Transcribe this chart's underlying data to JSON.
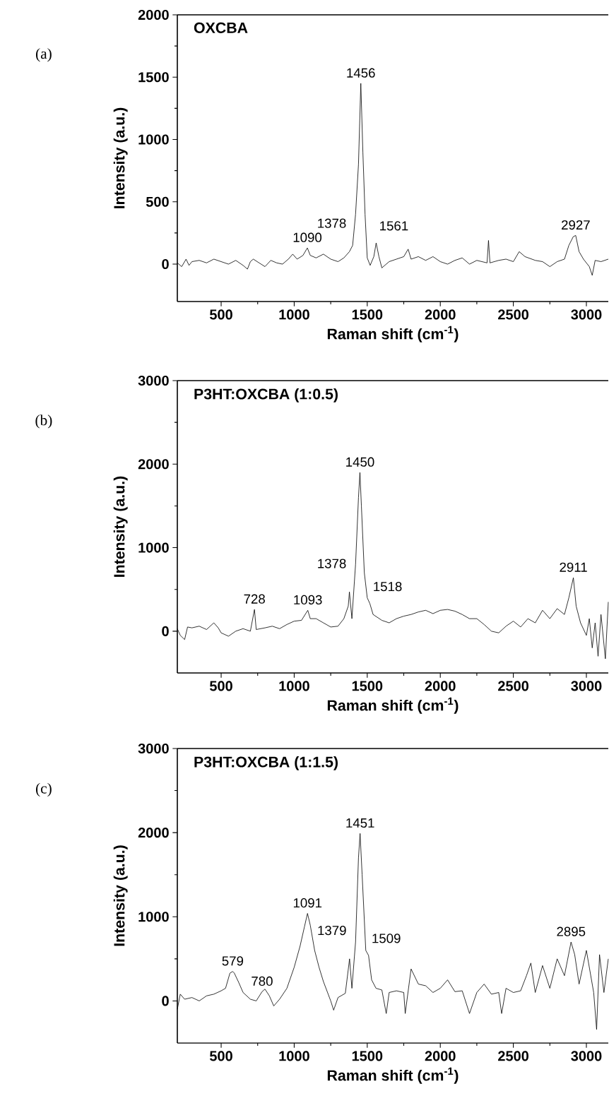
{
  "chart_data": [
    {
      "type": "line",
      "title": "OXCBA",
      "xlabel": "Raman shift (cm$^{-1}$)",
      "ylabel": "Intensity (a.u.)",
      "xlim": [
        200,
        3150
      ],
      "xticks": [
        500,
        1000,
        1500,
        2000,
        2500,
        3000
      ],
      "ylim": [
        -300,
        2000
      ],
      "yticks": [
        0,
        500,
        1000,
        1500,
        2000
      ],
      "series": [
        {
          "color": "#000000",
          "x": [
            200,
            230,
            260,
            280,
            300,
            350,
            400,
            450,
            500,
            550,
            600,
            650,
            680,
            700,
            720,
            760,
            800,
            840,
            880,
            920,
            960,
            990,
            1020,
            1060,
            1090,
            1110,
            1150,
            1200,
            1250,
            1300,
            1340,
            1378,
            1400,
            1420,
            1440,
            1456,
            1470,
            1485,
            1500,
            1520,
            1545,
            1561,
            1580,
            1600,
            1650,
            1700,
            1750,
            1780,
            1800,
            1850,
            1900,
            1950,
            2000,
            2050,
            2100,
            2150,
            2200,
            2250,
            2320,
            2330,
            2340,
            2400,
            2450,
            2500,
            2540,
            2580,
            2650,
            2700,
            2750,
            2800,
            2850,
            2880,
            2910,
            2927,
            2950,
            2980,
            3020,
            3040,
            3060,
            3100,
            3150
          ],
          "values": [
            10,
            -20,
            40,
            -10,
            20,
            30,
            10,
            40,
            20,
            0,
            30,
            -10,
            -40,
            20,
            40,
            10,
            -20,
            30,
            10,
            0,
            40,
            80,
            40,
            70,
            130,
            70,
            50,
            80,
            40,
            20,
            50,
            100,
            150,
            400,
            800,
            1450,
            900,
            400,
            50,
            -10,
            60,
            170,
            60,
            -30,
            20,
            40,
            60,
            120,
            40,
            60,
            30,
            60,
            20,
            0,
            30,
            50,
            0,
            30,
            10,
            190,
            10,
            30,
            40,
            20,
            100,
            60,
            30,
            20,
            -20,
            20,
            40,
            150,
            220,
            230,
            100,
            40,
            -20,
            -90,
            30,
            20,
            40
          ]
        }
      ],
      "annotations": [
        "(a)",
        {
          "text": "1090",
          "x": 1090,
          "y": 130
        },
        {
          "text": "1378",
          "x": 1378,
          "y": 100
        },
        {
          "text": "1456",
          "x": 1456,
          "y": 1450
        },
        {
          "text": "1561",
          "x": 1561,
          "y": 170
        },
        {
          "text": "2927",
          "x": 2927,
          "y": 230
        }
      ]
    },
    {
      "type": "line",
      "title": "P3HT:OXCBA (1:0.5)",
      "xlabel": "Raman shift (cm$^{-1}$)",
      "ylabel": "Intensity (a.u.)",
      "xlim": [
        200,
        3150
      ],
      "xticks": [
        500,
        1000,
        1500,
        2000,
        2500,
        3000
      ],
      "ylim": [
        -500,
        3000
      ],
      "yticks": [
        0,
        1000,
        2000,
        3000
      ],
      "series": [
        {
          "color": "#000000",
          "x": [
            200,
            220,
            250,
            270,
            300,
            350,
            400,
            450,
            480,
            500,
            550,
            600,
            650,
            700,
            728,
            740,
            800,
            850,
            900,
            950,
            1000,
            1050,
            1093,
            1110,
            1150,
            1200,
            1250,
            1300,
            1340,
            1370,
            1378,
            1395,
            1420,
            1440,
            1450,
            1460,
            1480,
            1500,
            1518,
            1540,
            1600,
            1650,
            1700,
            1750,
            1800,
            1850,
            1900,
            1950,
            2000,
            2050,
            2100,
            2150,
            2200,
            2250,
            2300,
            2350,
            2400,
            2450,
            2500,
            2550,
            2600,
            2650,
            2700,
            2750,
            2800,
            2850,
            2880,
            2911,
            2930,
            2960,
            3000,
            3020,
            3040,
            3060,
            3080,
            3100,
            3130,
            3150
          ],
          "values": [
            30,
            -50,
            -100,
            50,
            40,
            60,
            20,
            100,
            40,
            -20,
            -60,
            0,
            30,
            0,
            260,
            20,
            40,
            60,
            30,
            80,
            120,
            130,
            250,
            150,
            150,
            100,
            50,
            60,
            150,
            300,
            470,
            150,
            800,
            1600,
            1900,
            1500,
            700,
            400,
            330,
            200,
            130,
            100,
            150,
            180,
            200,
            230,
            250,
            210,
            250,
            260,
            240,
            200,
            150,
            150,
            80,
            0,
            -20,
            60,
            120,
            50,
            150,
            100,
            250,
            150,
            270,
            200,
            400,
            640,
            300,
            100,
            -50,
            150,
            -200,
            100,
            -300,
            200,
            -330,
            350
          ]
        }
      ],
      "annotations": [
        "(b)",
        {
          "text": "728",
          "x": 728,
          "y": 260
        },
        {
          "text": "1093",
          "x": 1093,
          "y": 250
        },
        {
          "text": "1378",
          "x": 1378,
          "y": 470
        },
        {
          "text": "1450",
          "x": 1450,
          "y": 1900
        },
        {
          "text": "1518",
          "x": 1518,
          "y": 330
        },
        {
          "text": "2911",
          "x": 2911,
          "y": 640
        }
      ]
    },
    {
      "type": "line",
      "title": "P3HT:OXCBA (1:1.5)",
      "xlabel": "Raman shift (cm$^{-1}$)",
      "ylabel": "Intensity (a.u.)",
      "xlim": [
        200,
        3150
      ],
      "xticks": [
        500,
        1000,
        1500,
        2000,
        2500,
        3000
      ],
      "ylim": [
        -500,
        3000
      ],
      "yticks": [
        0,
        1000,
        2000,
        3000
      ],
      "series": [
        {
          "color": "#000000",
          "x": [
            200,
            220,
            250,
            300,
            350,
            400,
            450,
            500,
            530,
            560,
            579,
            590,
            620,
            650,
            700,
            740,
            780,
            800,
            830,
            860,
            900,
            950,
            1000,
            1040,
            1070,
            1091,
            1110,
            1140,
            1170,
            1200,
            1250,
            1270,
            1300,
            1350,
            1379,
            1395,
            1420,
            1440,
            1451,
            1465,
            1490,
            1509,
            1530,
            1560,
            1600,
            1630,
            1650,
            1700,
            1750,
            1760,
            1800,
            1850,
            1900,
            1950,
            2000,
            2050,
            2100,
            2150,
            2200,
            2250,
            2300,
            2350,
            2400,
            2420,
            2450,
            2500,
            2550,
            2590,
            2620,
            2650,
            2700,
            2750,
            2800,
            2850,
            2895,
            2920,
            2950,
            3000,
            3050,
            3070,
            3090,
            3120,
            3150
          ],
          "values": [
            -100,
            80,
            20,
            40,
            0,
            60,
            80,
            120,
            150,
            330,
            350,
            330,
            220,
            100,
            20,
            0,
            110,
            140,
            60,
            -60,
            20,
            150,
            400,
            650,
            880,
            1040,
            900,
            600,
            400,
            230,
            0,
            -110,
            40,
            90,
            500,
            150,
            700,
            1700,
            1990,
            1500,
            600,
            540,
            250,
            150,
            130,
            -150,
            100,
            120,
            100,
            -150,
            380,
            200,
            180,
            100,
            150,
            250,
            110,
            120,
            -150,
            100,
            200,
            80,
            100,
            -150,
            150,
            100,
            120,
            300,
            450,
            100,
            420,
            150,
            500,
            300,
            700,
            550,
            200,
            600,
            100,
            -340,
            550,
            100,
            500
          ]
        }
      ],
      "annotations": [
        "(c)",
        {
          "text": "579",
          "x": 579,
          "y": 350
        },
        {
          "text": "780",
          "x": 780,
          "y": 110
        },
        {
          "text": "1091",
          "x": 1091,
          "y": 1040
        },
        {
          "text": "1379",
          "x": 1379,
          "y": 500
        },
        {
          "text": "1451",
          "x": 1451,
          "y": 1990
        },
        {
          "text": "1509",
          "x": 1509,
          "y": 540
        },
        {
          "text": "2895",
          "x": 2895,
          "y": 700
        }
      ]
    }
  ]
}
